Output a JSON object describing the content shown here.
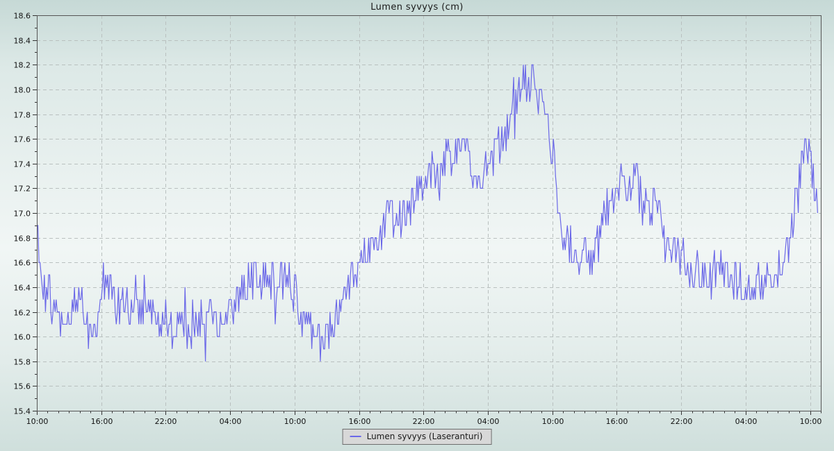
{
  "chart_data": {
    "type": "line",
    "title": "Lumen syvyys (cm)",
    "legend": "Lumen syvyys (Laseranturi)",
    "ylim": [
      15.4,
      18.6
    ],
    "y_major_step": 0.2,
    "y_minor_step": 0.1,
    "y_tick_labels": [
      "15.4",
      "15.6",
      "15.8",
      "16.0",
      "16.2",
      "16.4",
      "16.6",
      "16.8",
      "17.0",
      "17.2",
      "17.4",
      "17.6",
      "17.8",
      "18.0",
      "18.2",
      "18.4",
      "18.6"
    ],
    "xlim_hours": [
      0,
      73
    ],
    "x_major_step_hours": 6,
    "x_minor_step_hours": 1,
    "x_tick_labels": [
      "10:00",
      "16:00",
      "22:00",
      "04:00",
      "10:00",
      "16:00",
      "22:00",
      "04:00",
      "10:00",
      "16:00",
      "22:00",
      "04:00",
      "10:00"
    ],
    "data_end_hour": 72.7,
    "trend_points": [
      [
        0,
        17.1
      ],
      [
        0.15,
        16.7
      ],
      [
        0.35,
        16.45
      ],
      [
        0.7,
        16.35
      ],
      [
        1.5,
        16.25
      ],
      [
        2.2,
        16.1
      ],
      [
        2.6,
        16.05
      ],
      [
        3,
        16.2
      ],
      [
        3.6,
        16.3
      ],
      [
        4.2,
        16.25
      ],
      [
        4.7,
        16.05
      ],
      [
        5.2,
        15.95
      ],
      [
        5.7,
        16.1
      ],
      [
        6.1,
        16.4
      ],
      [
        6.6,
        16.45
      ],
      [
        7.1,
        16.3
      ],
      [
        7.6,
        16.2
      ],
      [
        9,
        16.25
      ],
      [
        10,
        16.2
      ],
      [
        11,
        16.15
      ],
      [
        12,
        16.1
      ],
      [
        13,
        16.1
      ],
      [
        14,
        16.05
      ],
      [
        15,
        16.15
      ],
      [
        16,
        16.2
      ],
      [
        17,
        16.1
      ],
      [
        18,
        16.2
      ],
      [
        19,
        16.3
      ],
      [
        20,
        16.45
      ],
      [
        21,
        16.45
      ],
      [
        22,
        16.5
      ],
      [
        23,
        16.45
      ],
      [
        24,
        16.35
      ],
      [
        24.7,
        16.15
      ],
      [
        25.5,
        16.05
      ],
      [
        26.5,
        16.0
      ],
      [
        27.3,
        16.05
      ],
      [
        28,
        16.2
      ],
      [
        29,
        16.4
      ],
      [
        30,
        16.6
      ],
      [
        31,
        16.7
      ],
      [
        32,
        16.85
      ],
      [
        33,
        16.95
      ],
      [
        33.6,
        16.9
      ],
      [
        34.3,
        17.0
      ],
      [
        35,
        17.1
      ],
      [
        36,
        17.25
      ],
      [
        37,
        17.35
      ],
      [
        38,
        17.45
      ],
      [
        39,
        17.5
      ],
      [
        40,
        17.5
      ],
      [
        40.7,
        17.4
      ],
      [
        41.3,
        17.3
      ],
      [
        42,
        17.4
      ],
      [
        43,
        17.5
      ],
      [
        43.7,
        17.65
      ],
      [
        44.3,
        17.8
      ],
      [
        45,
        18.0
      ],
      [
        45.7,
        18.1
      ],
      [
        46.2,
        18.05
      ],
      [
        47,
        17.9
      ],
      [
        47.6,
        17.75
      ],
      [
        48.1,
        17.45
      ],
      [
        48.5,
        17.0
      ],
      [
        49,
        16.8
      ],
      [
        50,
        16.7
      ],
      [
        50.7,
        16.6
      ],
      [
        51.5,
        16.65
      ],
      [
        52.3,
        16.75
      ],
      [
        53,
        17.0
      ],
      [
        53.7,
        17.15
      ],
      [
        54.5,
        17.25
      ],
      [
        55.5,
        17.25
      ],
      [
        56.3,
        17.15
      ],
      [
        57,
        17.1
      ],
      [
        58,
        16.95
      ],
      [
        59,
        16.8
      ],
      [
        60,
        16.7
      ],
      [
        61,
        16.55
      ],
      [
        62,
        16.5
      ],
      [
        63,
        16.5
      ],
      [
        64,
        16.5
      ],
      [
        65,
        16.45
      ],
      [
        66,
        16.4
      ],
      [
        66.6,
        16.35
      ],
      [
        67.2,
        16.4
      ],
      [
        68,
        16.45
      ],
      [
        68.7,
        16.5
      ],
      [
        69.4,
        16.6
      ],
      [
        70,
        16.75
      ],
      [
        70.6,
        17.0
      ],
      [
        71.1,
        17.3
      ],
      [
        71.5,
        17.55
      ],
      [
        71.9,
        17.45
      ],
      [
        72.3,
        17.3
      ],
      [
        72.7,
        17.15
      ]
    ],
    "noise": {
      "amplitude": 0.17,
      "spike_prob": 0.04,
      "spike_extra": 0.25,
      "quantize": 0.1,
      "clamp": [
        15.68,
        18.32
      ],
      "sample_step_hours": 0.1,
      "seed": 7
    },
    "colors": {
      "line": "#6b68e8",
      "grid": "#b9c0bf",
      "axis": "#555555",
      "tick": "#333333",
      "text": "#111111"
    },
    "grid": "major-dashed",
    "legend_position": "bottom-center"
  }
}
